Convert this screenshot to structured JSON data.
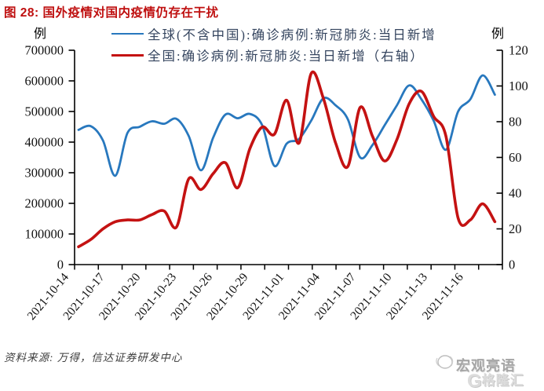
{
  "title": "图 28: 国外疫情对国内疫情仍存在干扰",
  "source_note": "资料来源: 万得，信达证券研发中心",
  "watermark": {
    "name": "宏观亮语",
    "logo_letter": "G",
    "logo_text": "格隆汇"
  },
  "colors": {
    "title": "#bf0f0f",
    "axis": "#000000",
    "global_line": "#2878be",
    "china_line": "#c41212",
    "legend_text": "#35455f"
  },
  "chart_data": {
    "type": "line",
    "grid": false,
    "legend_position": "top",
    "x": [
      "2021-10-14",
      "2021-10-15",
      "2021-10-16",
      "2021-10-17",
      "2021-10-18",
      "2021-10-19",
      "2021-10-20",
      "2021-10-21",
      "2021-10-22",
      "2021-10-23",
      "2021-10-24",
      "2021-10-25",
      "2021-10-26",
      "2021-10-27",
      "2021-10-28",
      "2021-10-29",
      "2021-10-30",
      "2021-10-31",
      "2021-11-01",
      "2021-11-02",
      "2021-11-03",
      "2021-11-04",
      "2021-11-05",
      "2021-11-06",
      "2021-11-07",
      "2021-11-08",
      "2021-11-09",
      "2021-11-10",
      "2021-11-11",
      "2021-11-12",
      "2021-11-13",
      "2021-11-14",
      "2021-11-15",
      "2021-11-16",
      "2021-11-17"
    ],
    "x_tick_labels": [
      "2021-10-14",
      "2021-10-17",
      "2021-10-20",
      "2021-10-23",
      "2021-10-26",
      "2021-10-29",
      "2021-11-01",
      "2021-11-04",
      "2021-11-07",
      "2021-11-10",
      "2021-11-13",
      "2021-11-16"
    ],
    "series": [
      {
        "name": "全球(不含中国):确诊病例:新冠肺炎:当日新增",
        "axis": "left",
        "color": "#2878be",
        "values": [
          440000,
          452000,
          405000,
          290000,
          430000,
          450000,
          468000,
          460000,
          476000,
          420000,
          308000,
          415000,
          490000,
          478000,
          492000,
          455000,
          322000,
          395000,
          410000,
          470000,
          543000,
          520000,
          474000,
          350000,
          390000,
          455000,
          520000,
          585000,
          540000,
          470000,
          375000,
          500000,
          540000,
          618000,
          555000
        ]
      },
      {
        "name": "全国:确诊病例:新冠肺炎:当日新增（右轴）",
        "axis": "right",
        "color": "#c41212",
        "values": [
          10,
          14,
          20,
          24,
          25,
          25,
          28,
          30,
          21,
          48,
          42,
          51,
          57,
          43,
          65,
          77,
          73,
          92,
          68,
          107,
          93,
          68,
          55,
          88,
          72,
          58,
          70,
          90,
          97,
          83,
          72,
          26,
          25,
          34,
          24
        ]
      }
    ],
    "left_axis": {
      "unit": "例",
      "min": 0,
      "max": 700000,
      "tick_step": 100000,
      "ticks": [
        0,
        100000,
        200000,
        300000,
        400000,
        500000,
        600000,
        700000
      ]
    },
    "right_axis": {
      "unit": "例",
      "min": 0,
      "max": 120,
      "tick_step": 20,
      "ticks": [
        0,
        20,
        40,
        60,
        80,
        100,
        120
      ]
    }
  }
}
